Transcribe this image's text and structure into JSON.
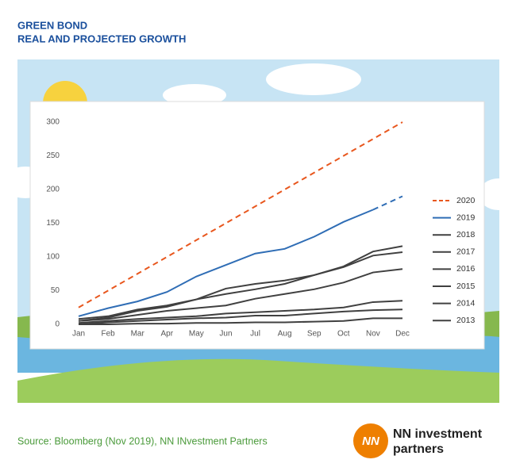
{
  "header": {
    "title": "GREEN BOND",
    "subtitle": "REAL AND PROJECTED GROWTH"
  },
  "chart_data": {
    "type": "line",
    "categories": [
      "Jan",
      "Feb",
      "Mar",
      "Apr",
      "May",
      "Jun",
      "Jul",
      "Aug",
      "Sep",
      "Oct",
      "Nov",
      "Dec"
    ],
    "ylim": [
      0,
      300
    ],
    "yticks": [
      0,
      50,
      100,
      150,
      200,
      250,
      300
    ],
    "grid": false,
    "legend": "right",
    "series": [
      {
        "name": "2020",
        "color": "#e8571e",
        "dash_from": 0,
        "values": [
          25,
          50,
          75,
          100,
          125,
          150,
          175,
          200,
          225,
          250,
          275,
          300
        ]
      },
      {
        "name": "2019",
        "color": "#2f6db5",
        "dash_from": 10,
        "values": [
          12,
          24,
          34,
          48,
          71,
          88,
          105,
          112,
          130,
          152,
          170,
          190
        ]
      },
      {
        "name": "2018",
        "color": "#404040",
        "values": [
          8,
          12,
          22,
          28,
          37,
          53,
          60,
          65,
          73,
          86,
          108,
          116
        ]
      },
      {
        "name": "2017",
        "color": "#404040",
        "values": [
          5,
          10,
          20,
          26,
          37,
          45,
          52,
          60,
          73,
          85,
          102,
          107
        ]
      },
      {
        "name": "2016",
        "color": "#404040",
        "values": [
          5,
          8,
          14,
          20,
          24,
          28,
          38,
          45,
          52,
          62,
          77,
          82
        ]
      },
      {
        "name": "2015",
        "color": "#404040",
        "values": [
          2,
          5,
          8,
          10,
          12,
          16,
          18,
          20,
          22,
          25,
          33,
          35
        ]
      },
      {
        "name": "2014",
        "color": "#404040",
        "values": [
          0,
          3,
          5,
          7,
          9,
          10,
          13,
          13,
          16,
          19,
          21,
          22
        ]
      },
      {
        "name": "2013",
        "color": "#404040",
        "values": [
          0,
          0,
          1,
          1,
          2,
          2,
          3,
          3,
          4,
          5,
          9,
          9
        ]
      }
    ]
  },
  "footer": {
    "source": "Source: Bloomberg (Nov 2019), NN INvestment Partners",
    "logo_line1": "NN investment",
    "logo_line2": "partners"
  }
}
